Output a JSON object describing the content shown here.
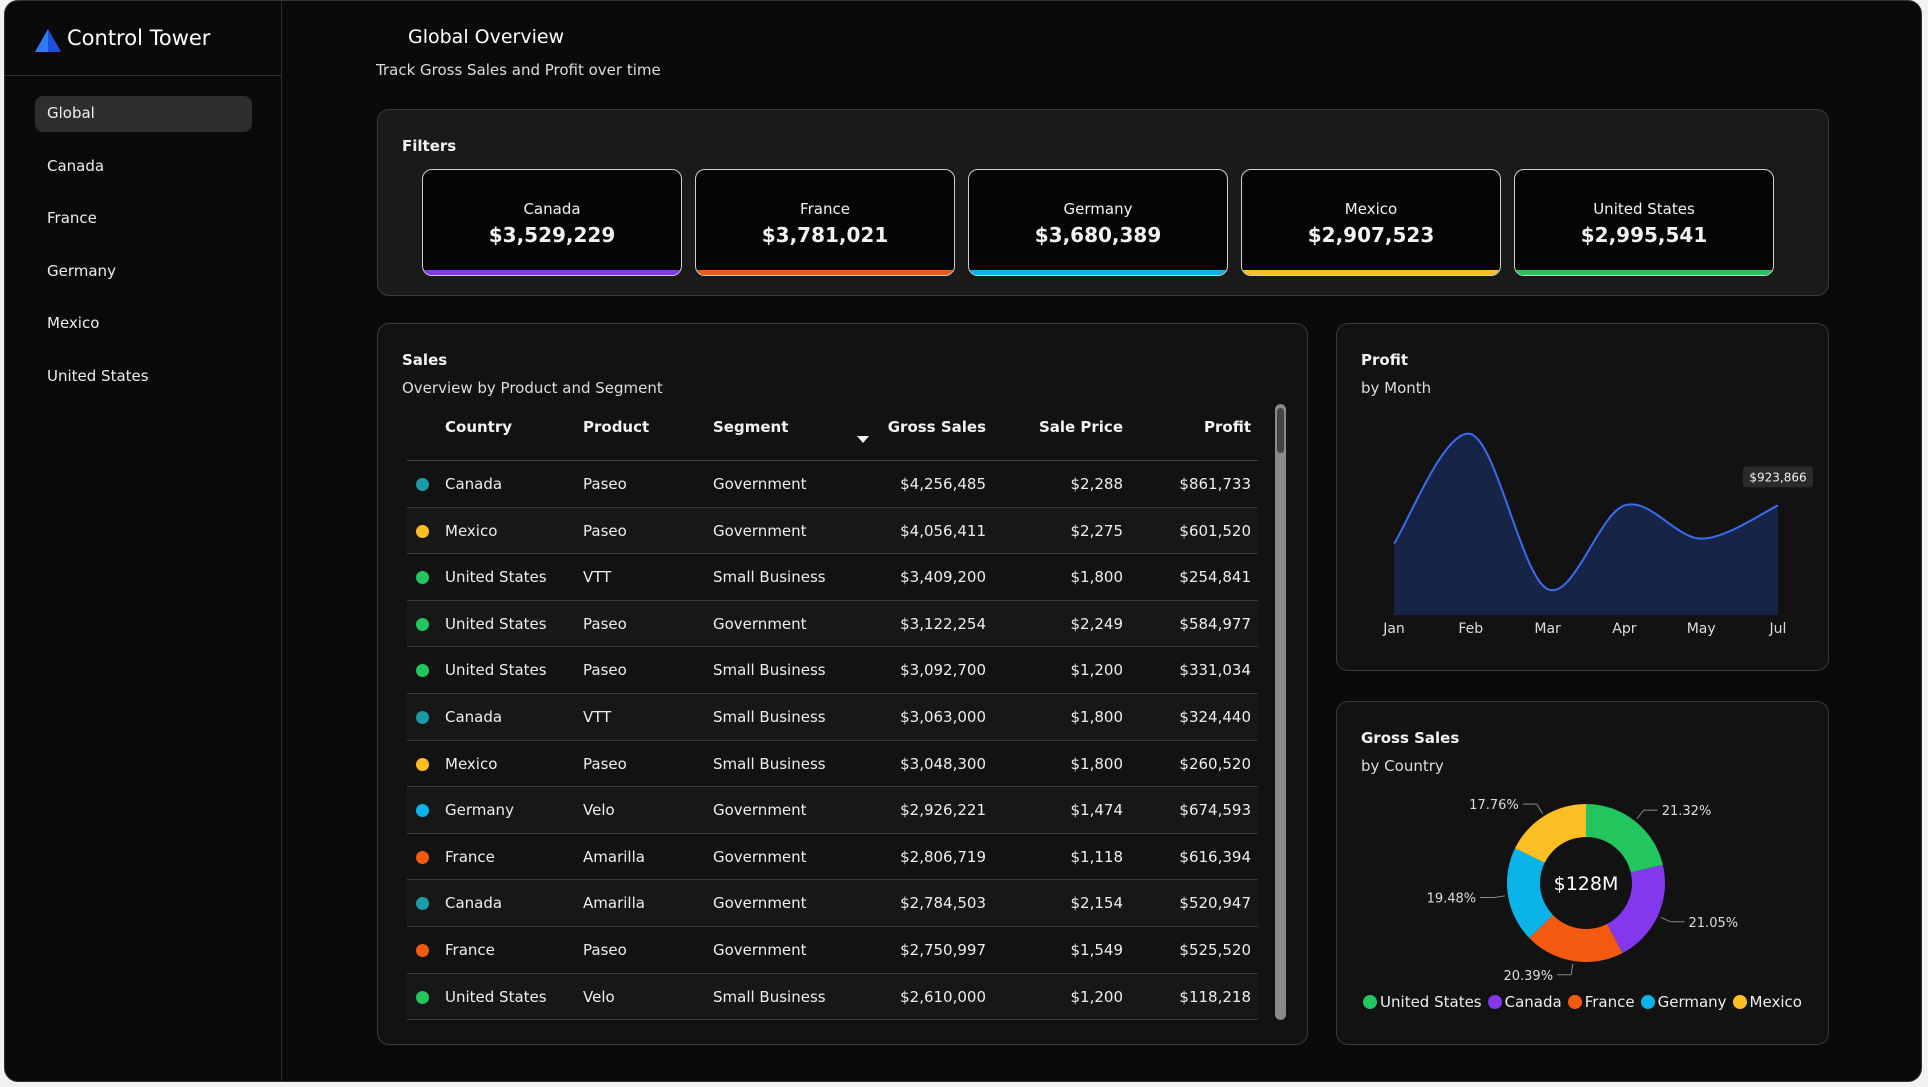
{
  "app": {
    "name": "Control Tower"
  },
  "nav": [
    "Global",
    "Canada",
    "France",
    "Germany",
    "Mexico",
    "United States"
  ],
  "nav_selected": 0,
  "header": {
    "title": "Global Overview",
    "subtitle": "Track Gross Sales and Profit over time"
  },
  "filters": {
    "title": "Filters",
    "cards": [
      {
        "name": "Canada",
        "value": "$3,529,229",
        "color": "#8338ec"
      },
      {
        "name": "France",
        "value": "$3,781,021",
        "color": "#f25a0f"
      },
      {
        "name": "Germany",
        "value": "$3,680,389",
        "color": "#0ab4e8"
      },
      {
        "name": "Mexico",
        "value": "$2,907,523",
        "color": "#fbbf24"
      },
      {
        "name": "United States",
        "value": "$2,995,541",
        "color": "#22c55e"
      }
    ]
  },
  "sales": {
    "title": "Sales",
    "subtitle": "Overview by Product and Segment",
    "columns": [
      "Country",
      "Product",
      "Segment",
      "Gross Sales",
      "Sale Price",
      "Profit"
    ],
    "rows": [
      {
        "dot": "#1a9ba8",
        "country": "Canada",
        "product": "Paseo",
        "segment": "Government",
        "gross_sales": "$4,256,485",
        "sale_price": "$2,288",
        "profit": "$861,733"
      },
      {
        "dot": "#fbbf24",
        "country": "Mexico",
        "product": "Paseo",
        "segment": "Government",
        "gross_sales": "$4,056,411",
        "sale_price": "$2,275",
        "profit": "$601,520"
      },
      {
        "dot": "#22c55e",
        "country": "United States",
        "product": "VTT",
        "segment": "Small Business",
        "gross_sales": "$3,409,200",
        "sale_price": "$1,800",
        "profit": "$254,841"
      },
      {
        "dot": "#22c55e",
        "country": "United States",
        "product": "Paseo",
        "segment": "Government",
        "gross_sales": "$3,122,254",
        "sale_price": "$2,249",
        "profit": "$584,977"
      },
      {
        "dot": "#22c55e",
        "country": "United States",
        "product": "Paseo",
        "segment": "Small Business",
        "gross_sales": "$3,092,700",
        "sale_price": "$1,200",
        "profit": "$331,034"
      },
      {
        "dot": "#1a9ba8",
        "country": "Canada",
        "product": "VTT",
        "segment": "Small Business",
        "gross_sales": "$3,063,000",
        "sale_price": "$1,800",
        "profit": "$324,440"
      },
      {
        "dot": "#fbbf24",
        "country": "Mexico",
        "product": "Paseo",
        "segment": "Small Business",
        "gross_sales": "$3,048,300",
        "sale_price": "$1,800",
        "profit": "$260,520"
      },
      {
        "dot": "#0ab4e8",
        "country": "Germany",
        "product": "Velo",
        "segment": "Government",
        "gross_sales": "$2,926,221",
        "sale_price": "$1,474",
        "profit": "$674,593"
      },
      {
        "dot": "#f25a0f",
        "country": "France",
        "product": "Amarilla",
        "segment": "Government",
        "gross_sales": "$2,806,719",
        "sale_price": "$1,118",
        "profit": "$616,394"
      },
      {
        "dot": "#1a9ba8",
        "country": "Canada",
        "product": "Amarilla",
        "segment": "Government",
        "gross_sales": "$2,784,503",
        "sale_price": "$2,154",
        "profit": "$520,947"
      },
      {
        "dot": "#f25a0f",
        "country": "France",
        "product": "Paseo",
        "segment": "Government",
        "gross_sales": "$2,750,997",
        "sale_price": "$1,549",
        "profit": "$525,520"
      },
      {
        "dot": "#22c55e",
        "country": "United States",
        "product": "Velo",
        "segment": "Small Business",
        "gross_sales": "$2,610,000",
        "sale_price": "$1,200",
        "profit": "$118,218"
      }
    ]
  },
  "profit": {
    "type": "line",
    "title": "Profit",
    "subtitle": "by Month",
    "categories": [
      "Jan",
      "Feb",
      "Mar",
      "Apr",
      "May",
      "Jul"
    ],
    "values": [
      602000,
      1526000,
      218000,
      923866,
      644000,
      923866
    ],
    "value_labels": [
      null,
      null,
      null,
      null,
      null,
      "$923,866"
    ],
    "color": "#3b6cf0",
    "fill": "#172447"
  },
  "gross": {
    "type": "donut",
    "title": "Gross Sales",
    "subtitle": "by Country",
    "center_label": "$128M",
    "categories": [
      "United States",
      "Canada",
      "France",
      "Germany",
      "Mexico"
    ],
    "values": [
      21.32,
      21.05,
      20.39,
      19.48,
      17.76
    ],
    "value_labels": [
      "21.32%",
      "21.05%",
      "20.39%",
      "19.48%",
      "17.76%"
    ],
    "colors": [
      "#22c55e",
      "#8338ec",
      "#f25a0f",
      "#0ab4e8",
      "#fbbf24"
    ]
  }
}
